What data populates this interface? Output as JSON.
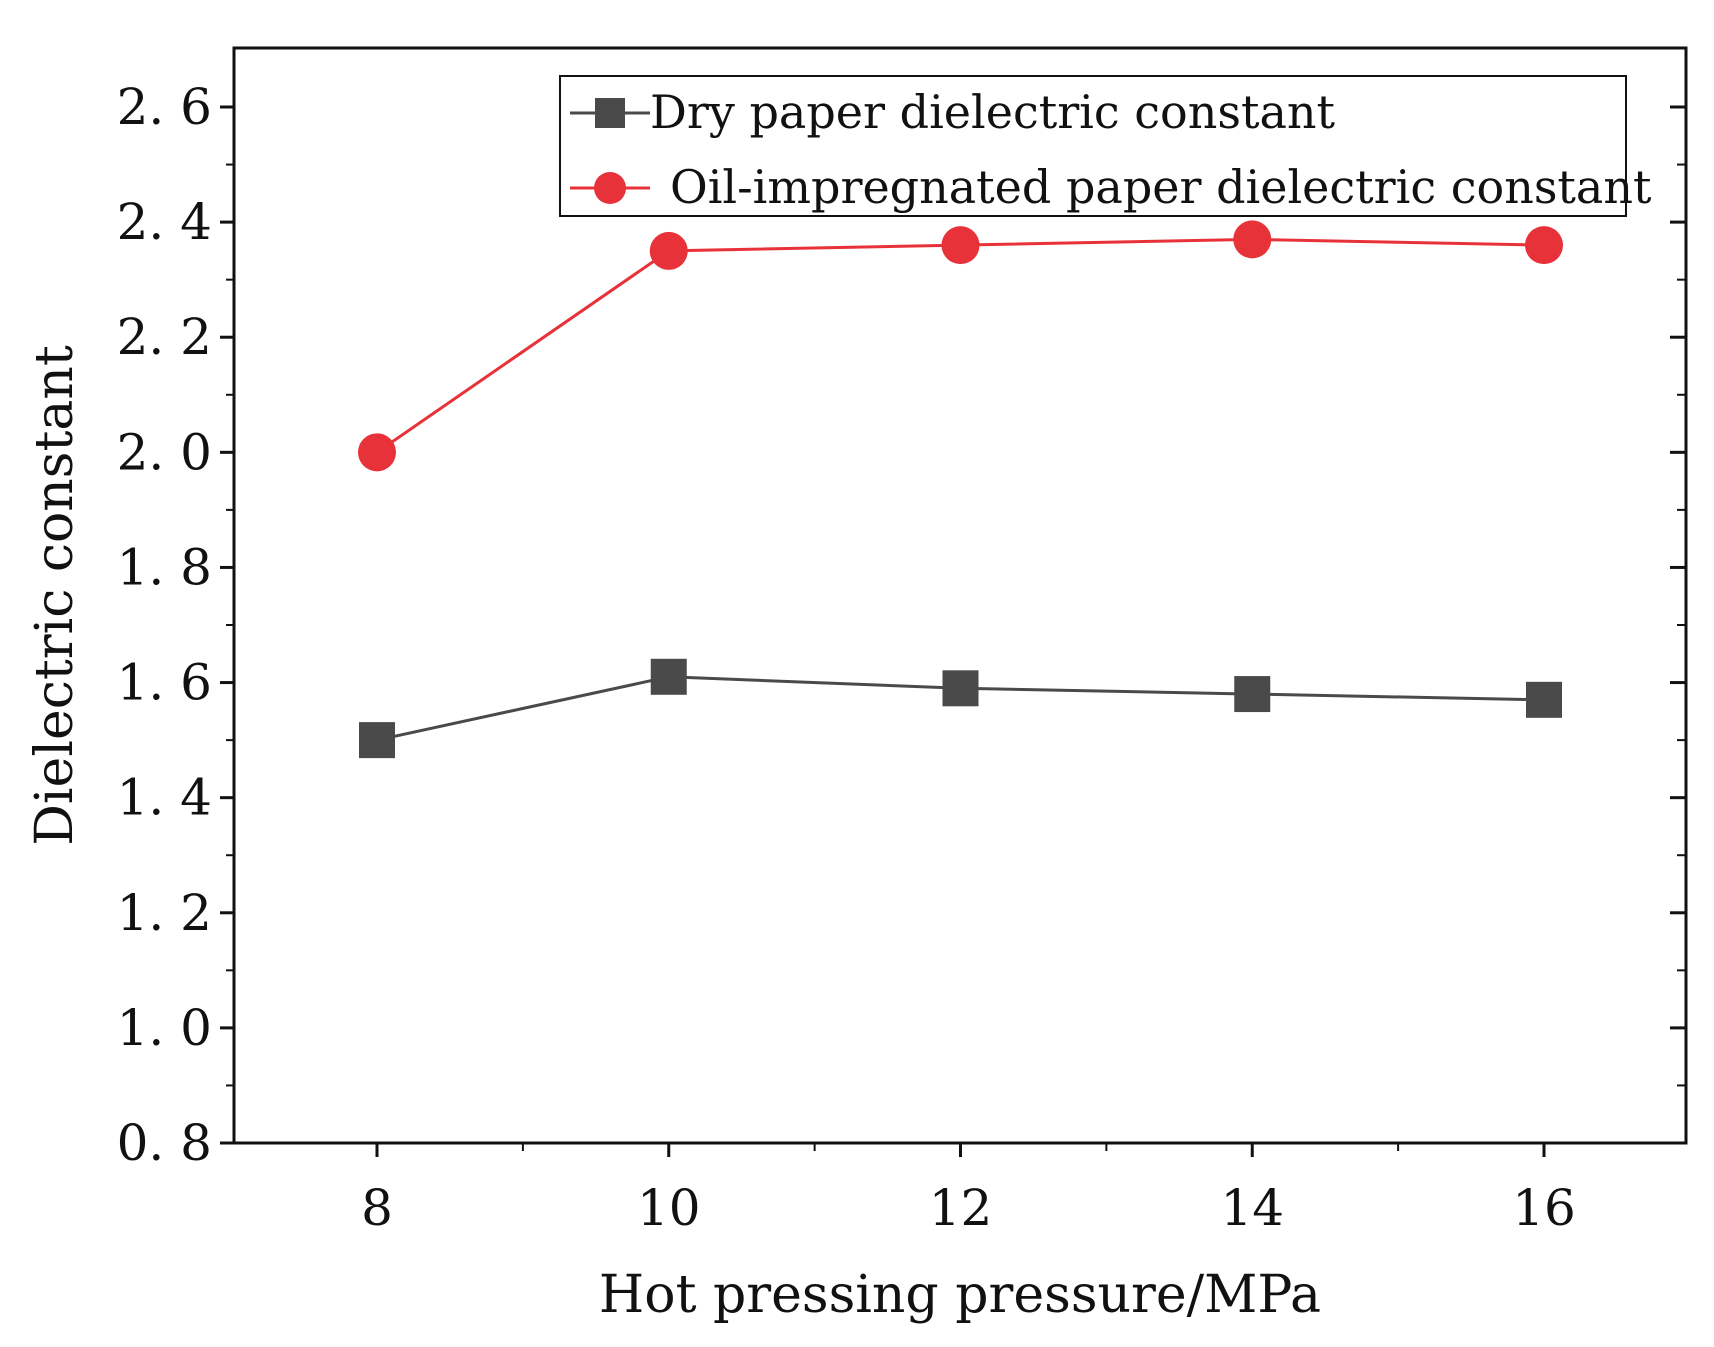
{
  "chart_data": {
    "type": "line",
    "title": "",
    "xlabel": "Hot pressing pressure/MPa",
    "ylabel": "Dielectric constant",
    "xlim": [
      7,
      17
    ],
    "ylim": [
      0.8,
      2.7
    ],
    "x_ticks": [
      8,
      10,
      12,
      14,
      16
    ],
    "x_tick_labels": [
      "8",
      "10",
      "12",
      "14",
      "16"
    ],
    "y_ticks": [
      0.8,
      1.0,
      1.2,
      1.4,
      1.6,
      1.8,
      2.0,
      2.2,
      2.4,
      2.6
    ],
    "y_tick_labels": [
      "0. 8",
      "1. 0",
      "1. 2",
      "1. 4",
      "1. 6",
      "1. 8",
      "2. 0",
      "2. 2",
      "2. 4",
      "2. 6"
    ],
    "grid": false,
    "legend_position": "top-right",
    "x": [
      8,
      10,
      12,
      14,
      16
    ],
    "series": [
      {
        "name": "Dry paper dielectric constant",
        "marker": "square",
        "color": "#4a4a4a",
        "values": [
          1.5,
          1.61,
          1.59,
          1.58,
          1.57
        ]
      },
      {
        "name": "Oil-impregnated paper dielectric constant",
        "marker": "circle",
        "color": "#e8323a",
        "values": [
          2.0,
          2.35,
          2.36,
          2.37,
          2.36
        ]
      }
    ]
  }
}
